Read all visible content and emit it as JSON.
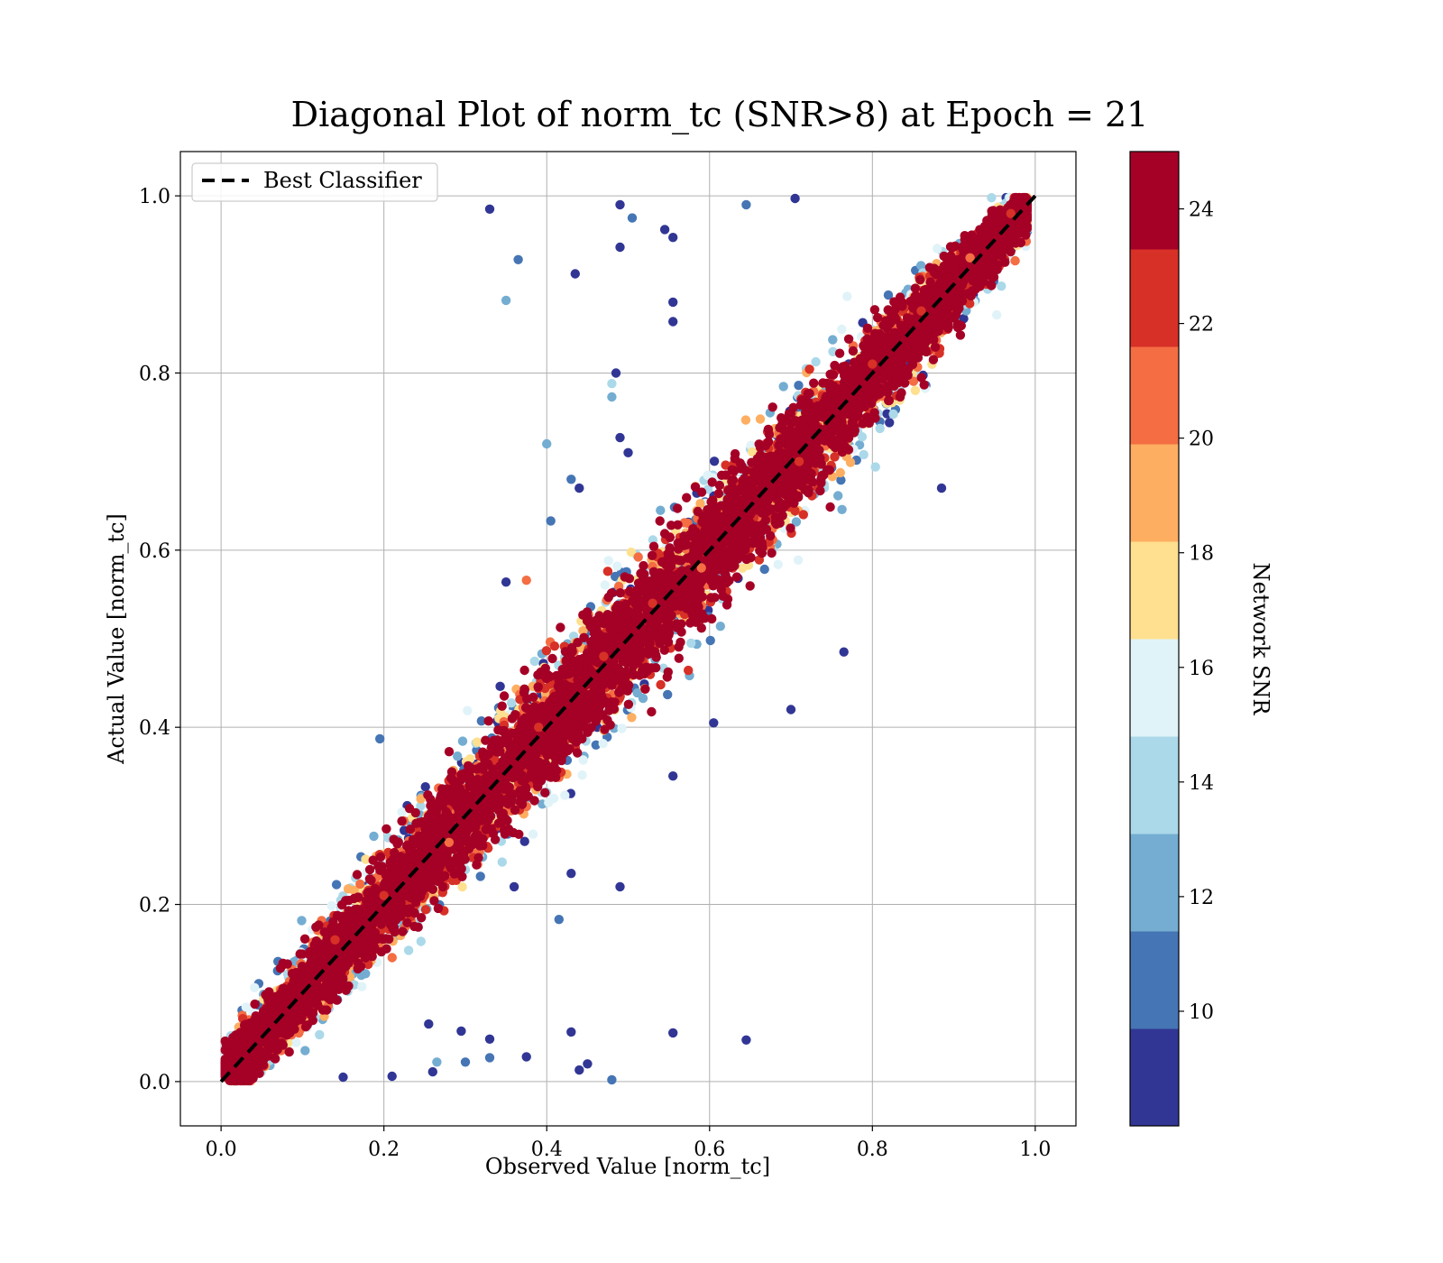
{
  "chart_data": {
    "type": "scatter",
    "title": "Diagonal Plot of norm_tc (SNR>8) at Epoch = 21",
    "xlabel": "Observed Value [norm_tc]",
    "ylabel": "Actual Value [norm_tc]",
    "xlim": [
      -0.05,
      1.05
    ],
    "ylim": [
      -0.05,
      1.05
    ],
    "xticks": [
      0.0,
      0.2,
      0.4,
      0.6,
      0.8,
      1.0
    ],
    "yticks": [
      0.0,
      0.2,
      0.4,
      0.6,
      0.8,
      1.0
    ],
    "xtick_labels": [
      "0.0",
      "0.2",
      "0.4",
      "0.6",
      "0.8",
      "1.0"
    ],
    "ytick_labels": [
      "0.0",
      "0.2",
      "0.4",
      "0.6",
      "0.8",
      "1.0"
    ],
    "grid": true,
    "legend": {
      "position": "upper-left",
      "entries": [
        "Best Classifier"
      ]
    },
    "reference_line": {
      "name": "Best Classifier",
      "style": "dashed",
      "color": "#000000",
      "x": [
        0.0,
        1.0
      ],
      "y": [
        0.0,
        1.0
      ]
    },
    "colorbar": {
      "label": "Network SNR",
      "range": [
        8,
        25
      ],
      "ticks": [
        10,
        12,
        14,
        16,
        18,
        20,
        22,
        24
      ],
      "tick_labels": [
        "10",
        "12",
        "14",
        "16",
        "18",
        "20",
        "22",
        "24"
      ],
      "colors": [
        "#313695",
        "#4575b4",
        "#74add1",
        "#abd9e9",
        "#e0f3f8",
        "#fee090",
        "#fdae61",
        "#f46d43",
        "#d73027",
        "#a50026"
      ]
    },
    "series": [
      {
        "kind": "dense_band_along_diagonal",
        "points": [
          [
            0.33,
            0.985,
            8.5
          ],
          [
            0.49,
            0.99,
            8.6
          ],
          [
            0.505,
            0.975,
            9.8
          ],
          [
            0.545,
            0.962,
            8.5
          ],
          [
            0.555,
            0.953,
            8.6
          ],
          [
            0.365,
            0.928,
            11.2
          ],
          [
            0.435,
            0.912,
            9.5
          ],
          [
            0.49,
            0.942,
            8.5
          ],
          [
            0.35,
            0.882,
            11.8
          ],
          [
            0.555,
            0.88,
            9.5
          ],
          [
            0.555,
            0.858,
            8.7
          ],
          [
            0.645,
            0.99,
            10.5
          ],
          [
            0.705,
            0.997,
            8.5
          ],
          [
            0.48,
            0.788,
            13.5
          ],
          [
            0.485,
            0.8,
            8.5
          ],
          [
            0.48,
            0.773,
            11.5
          ],
          [
            0.4,
            0.72,
            11.8
          ],
          [
            0.405,
            0.633,
            10.8
          ],
          [
            0.49,
            0.727,
            8.5
          ],
          [
            0.5,
            0.71,
            8.6
          ],
          [
            0.43,
            0.68,
            10.2
          ],
          [
            0.44,
            0.67,
            9.0
          ],
          [
            0.35,
            0.564,
            9.2
          ],
          [
            0.375,
            0.566,
            21.5
          ],
          [
            0.195,
            0.387,
            9.8
          ],
          [
            0.765,
            0.485,
            9.0
          ],
          [
            0.7,
            0.42,
            8.5
          ],
          [
            0.605,
            0.405,
            9.2
          ],
          [
            0.555,
            0.345,
            8.7
          ],
          [
            0.49,
            0.22,
            8.6
          ],
          [
            0.415,
            0.183,
            11.0
          ],
          [
            0.885,
            0.67,
            9.5
          ],
          [
            0.36,
            0.22,
            9.3
          ],
          [
            0.43,
            0.235,
            9.0
          ],
          [
            0.255,
            0.065,
            9.5
          ],
          [
            0.295,
            0.057,
            8.6
          ],
          [
            0.33,
            0.048,
            9.0
          ],
          [
            0.43,
            0.056,
            8.5
          ],
          [
            0.555,
            0.055,
            8.8
          ],
          [
            0.645,
            0.047,
            8.6
          ],
          [
            0.33,
            0.027,
            10.8
          ],
          [
            0.375,
            0.028,
            9.3
          ],
          [
            0.44,
            0.013,
            8.6
          ],
          [
            0.45,
            0.02,
            8.9
          ],
          [
            0.48,
            0.002,
            11.0
          ],
          [
            0.21,
            0.006,
            8.5
          ],
          [
            0.26,
            0.011,
            9.2
          ],
          [
            0.3,
            0.022,
            10.8
          ],
          [
            0.265,
            0.022,
            11.5
          ],
          [
            0.15,
            0.005,
            9.5
          ],
          [
            0.03,
            0.02,
            24.5
          ],
          [
            0.06,
            0.08,
            23.5
          ],
          [
            0.1,
            0.1,
            24.5
          ],
          [
            0.14,
            0.16,
            22.5
          ],
          [
            0.18,
            0.17,
            24.5
          ],
          [
            0.2,
            0.21,
            23.0
          ],
          [
            0.24,
            0.25,
            24.5
          ],
          [
            0.28,
            0.27,
            21.0
          ],
          [
            0.3,
            0.31,
            24.5
          ],
          [
            0.33,
            0.33,
            23.5
          ],
          [
            0.36,
            0.38,
            24.5
          ],
          [
            0.39,
            0.4,
            22.0
          ],
          [
            0.42,
            0.41,
            24.5
          ],
          [
            0.44,
            0.46,
            24.0
          ],
          [
            0.47,
            0.48,
            22.5
          ],
          [
            0.5,
            0.5,
            24.5
          ],
          [
            0.53,
            0.54,
            23.0
          ],
          [
            0.56,
            0.57,
            24.5
          ],
          [
            0.59,
            0.58,
            21.0
          ],
          [
            0.62,
            0.63,
            24.5
          ],
          [
            0.65,
            0.64,
            23.5
          ],
          [
            0.68,
            0.69,
            24.5
          ],
          [
            0.71,
            0.7,
            22.0
          ],
          [
            0.74,
            0.75,
            24.5
          ],
          [
            0.77,
            0.77,
            24.0
          ],
          [
            0.8,
            0.81,
            22.5
          ],
          [
            0.83,
            0.82,
            24.5
          ],
          [
            0.86,
            0.87,
            23.0
          ],
          [
            0.89,
            0.88,
            24.5
          ],
          [
            0.92,
            0.93,
            21.5
          ],
          [
            0.95,
            0.95,
            24.5
          ],
          [
            0.97,
            0.98,
            23.0
          ]
        ]
      }
    ]
  }
}
